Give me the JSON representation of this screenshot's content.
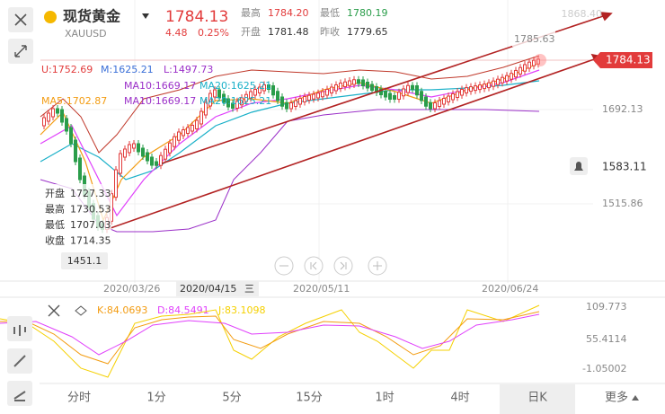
{
  "header": {
    "title": "现货黄金",
    "symbol": "XAUUSD",
    "price": "1784.13",
    "change": "4.48",
    "change_pct": "0.25%",
    "stats": [
      {
        "label": "最高",
        "value": "1784.20"
      },
      {
        "label": "开盘",
        "value": "1781.48"
      },
      {
        "label": "最低",
        "value": "1780.19"
      },
      {
        "label": "昨收",
        "value": "1779.65"
      }
    ]
  },
  "main_chart": {
    "boll": [
      "U:1752.69",
      "M:1625.21",
      "L:1497.73"
    ],
    "ma": [
      "MA5:1702.87",
      "MA10:1669.17",
      "MA20:1625.21"
    ],
    "ma_overlay": [
      "MA10:1669.17",
      "MA20:1625.21"
    ],
    "axis_labels": [
      "1868.40",
      "1692.13",
      "1515.86"
    ],
    "current_price": "1784.13",
    "alert_price": "1583.11",
    "high_marker": "1785.63",
    "low_marker": "1451.1",
    "ohlc": [
      {
        "label": "开盘",
        "value": "1727.33"
      },
      {
        "label": "最高",
        "value": "1730.53"
      },
      {
        "label": "最低",
        "value": "1707.03"
      },
      {
        "label": "收盘",
        "value": "1714.35"
      }
    ],
    "dates": [
      "2020/03/26",
      "2020/05/11",
      "2020/06/24"
    ],
    "selected_date": "2020/04/15",
    "selected_weekday": "三"
  },
  "kdj": {
    "indicators": [
      "K:84.0693",
      "D:84.5491",
      "J:83.1098"
    ],
    "axis_labels": [
      "109.773",
      "55.4114",
      "-1.05002"
    ]
  },
  "tabs": [
    "分时",
    "1分",
    "5分",
    "15分",
    "1时",
    "4时",
    "日K",
    "更多"
  ],
  "selected_tab": 6
}
